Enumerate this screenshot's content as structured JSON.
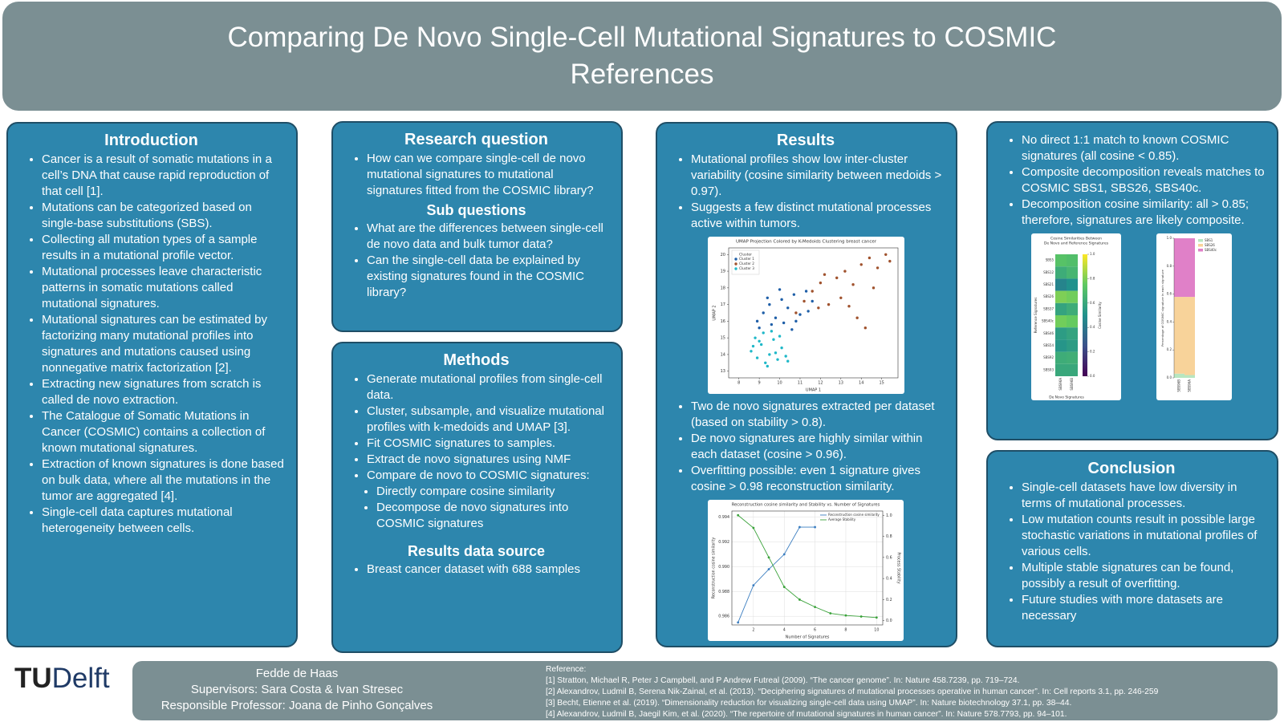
{
  "header": {
    "title": "Comparing De Novo Single-Cell Mutational Signatures to COSMIC References"
  },
  "introduction": {
    "heading": "Introduction",
    "bullets": [
      "Cancer is a result of somatic mutations in a cell’s DNA that cause rapid reproduction of that cell [1].",
      "Mutations can be categorized based on single-base substitutions (SBS).",
      "Collecting all mutation types of a sample results in a mutational profile vector.",
      "Mutational processes leave characteristic patterns in somatic mutations called mutational signatures.",
      "Mutational signatures can be estimated by factorizing many mutational profiles into signatures and mutations caused using nonnegative matrix factorization [2].",
      "Extracting new signatures from scratch is called de novo extraction.",
      "The Catalogue of Somatic Mutations in Cancer (COSMIC) contains a collection of known mutational signatures.",
      "Extraction of known signatures is done based on bulk data, where all the mutations in the tumor are aggregated [4].",
      "Single-cell data captures mutational heterogeneity between cells."
    ]
  },
  "research": {
    "heading": "Research question",
    "bullets": [
      "How can we compare single-cell de novo mutational signatures to mutational signatures fitted from the COSMIC library?"
    ],
    "sub_heading": "Sub questions",
    "sub_bullets": [
      "What are the differences between single-cell de novo data and bulk tumor data?",
      "Can the single-cell data be explained by existing signatures found in the COSMIC library?"
    ]
  },
  "methods": {
    "heading": "Methods",
    "bullets": [
      "Generate mutational profiles from single-cell data.",
      "Cluster, subsample, and visualize mutational profiles with k-medoids and UMAP [3].",
      "Fit COSMIC signatures to samples.",
      "Extract de novo signatures using NMF",
      "Compare de novo to COSMIC signatures:"
    ],
    "sub_bullets": [
      "Directly compare cosine similarity",
      "Decompose de novo signatures into COSMIC signatures"
    ],
    "source_heading": "Results data source",
    "source_bullets": [
      "Breast cancer dataset with 688 samples"
    ]
  },
  "results": {
    "heading": "Results",
    "bullets_top": [
      "Mutational profiles show low inter-cluster variability (cosine similarity between medoids > 0.97).",
      "Suggests a few distinct mutational processes active within tumors."
    ],
    "bullets_bottom": [
      "Two de novo signatures extracted per dataset (based on stability > 0.8).",
      "De novo signatures are highly similar within each dataset (cosine > 0.96).",
      "Overfitting possible: even 1 signature gives cosine > 0.98 reconstruction similarity."
    ]
  },
  "results2": {
    "bullets": [
      "No direct 1:1 match to known COSMIC signatures (all cosine < 0.85).",
      "Composite decomposition reveals matches to COSMIC SBS1, SBS26, SBS40c.",
      "Decomposition cosine similarity: all > 0.85; therefore, signatures are likely composite."
    ]
  },
  "conclusion": {
    "heading": "Conclusion",
    "bullets": [
      "Single-cell datasets have low diversity in terms of mutational processes.",
      "Low mutation counts result in possible large stochastic variations in mutational profiles of various cells.",
      "Multiple stable signatures can be found, possibly a result of overfitting.",
      "Future studies with more datasets are necessary"
    ]
  },
  "figures": {
    "umap": {
      "type": "scatter",
      "title": "UMAP Projection Colored by K-Medoids Clustering breast cancer",
      "xlabel": "UMAP 1",
      "ylabel": "UMAP 2",
      "legend_title": "Cluster",
      "legend": "upper left",
      "xlim": [
        7.5,
        15.8
      ],
      "ylim": [
        12.6,
        20.4
      ],
      "xticks": [
        8,
        9,
        10,
        11,
        12,
        13,
        14,
        15
      ],
      "yticks": [
        13,
        14,
        15,
        16,
        17,
        18,
        19,
        20
      ],
      "series": [
        {
          "name": "Cluster 1",
          "color": "#1f5fa8",
          "x": [
            8.9,
            9.2,
            9.5,
            9.8,
            10.1,
            10.4,
            10.7,
            11.0,
            11.3,
            11.6,
            9.0,
            9.6,
            10.2,
            10.8,
            11.4,
            9.4,
            10.0,
            10.6
          ],
          "y": [
            16.0,
            16.5,
            17.0,
            16.2,
            17.3,
            16.8,
            17.6,
            16.4,
            17.8,
            17.2,
            15.6,
            15.8,
            15.9,
            16.0,
            16.6,
            17.4,
            17.9,
            15.5
          ]
        },
        {
          "name": "Cluster 2",
          "color": "#a0522d",
          "x": [
            10.8,
            11.2,
            11.6,
            12.0,
            12.4,
            12.8,
            13.2,
            13.6,
            14.0,
            14.4,
            14.8,
            15.2,
            13.0,
            13.8,
            14.6,
            15.4,
            12.2,
            14.2,
            13.4,
            11.9
          ],
          "y": [
            16.5,
            17.2,
            17.8,
            18.3,
            17.0,
            18.6,
            19.0,
            18.2,
            19.4,
            19.8,
            19.2,
            20.0,
            17.4,
            16.2,
            18.0,
            19.6,
            18.8,
            15.6,
            16.9,
            16.8
          ]
        },
        {
          "name": "Cluster 3",
          "color": "#1fb8c8",
          "x": [
            8.6,
            8.9,
            9.1,
            9.3,
            9.5,
            9.7,
            9.9,
            10.1,
            10.3,
            8.8,
            9.2,
            9.6,
            10.0,
            9.4,
            8.7,
            9.8,
            10.4,
            9.0
          ],
          "y": [
            14.2,
            13.8,
            14.6,
            13.5,
            14.0,
            14.9,
            13.7,
            14.4,
            13.9,
            15.0,
            15.3,
            15.4,
            15.1,
            13.3,
            14.5,
            14.1,
            13.6,
            14.8
          ]
        }
      ]
    },
    "recon": {
      "type": "line",
      "title": "Reconstruction cosine similarity and Stability vs. Number of Signatures",
      "xlabel": "Number of Signatures",
      "ylabel": "Reconstruction cosine similarity",
      "y2label": "Process Stability",
      "legend": "upper right",
      "grid": true,
      "x": [
        1,
        2,
        3,
        4,
        5,
        6,
        7,
        8,
        9,
        10
      ],
      "xlim": [
        0.6,
        10.4
      ],
      "xticks": [
        2,
        4,
        6,
        8,
        10
      ],
      "ylim": [
        0.9853,
        0.9945
      ],
      "yticks": [
        0.986,
        0.988,
        {
          "value": 0.99,
          "label": "0.990"
        },
        0.992,
        0.994
      ],
      "y2lim": [
        -0.04,
        1.04
      ],
      "y2ticks": [
        {
          "value": 0,
          "label": "0.0"
        },
        0.2,
        0.4,
        0.6,
        0.8,
        {
          "value": 1,
          "label": "1.0"
        }
      ],
      "series": [
        {
          "name": "Reconstruction cosine similarity",
          "color": "#3a7dc0",
          "values": [
            0.9855,
            0.9885,
            0.9898,
            0.991,
            0.9932,
            0.9932,
            null,
            null,
            null,
            null
          ]
        },
        {
          "name": "Average Stability",
          "color": "#3aa23a",
          "axis": "y2",
          "values": [
            1.0,
            0.88,
            0.6,
            0.32,
            0.2,
            0.13,
            0.07,
            0.05,
            0.04,
            0.03
          ]
        }
      ]
    },
    "heatmap": {
      "type": "heatmap",
      "title": [
        "Cosine Similarities Between",
        "De Novo and Reference Signatures"
      ],
      "xlabel": "De Novo Signatures",
      "ylabel": "Reference Signatures",
      "colorbar_label": "Cosine Similarity",
      "rows": [
        "SBS5",
        "SBS12",
        "SBS21",
        "SBS26",
        "SBS37",
        "SBS40c",
        "SBS46",
        "SBS54",
        "SBS92",
        "SBS93"
      ],
      "columns": [
        "SBS96A",
        "SBS96B"
      ],
      "values": [
        [
          0.72,
          0.7
        ],
        [
          0.62,
          0.66
        ],
        [
          0.45,
          0.5
        ],
        [
          0.8,
          0.78
        ],
        [
          0.58,
          0.62
        ],
        [
          0.78,
          0.76
        ],
        [
          0.55,
          0.58
        ],
        [
          0.52,
          0.55
        ],
        [
          0.62,
          0.63
        ],
        [
          0.6,
          0.6
        ]
      ],
      "clim": [
        0,
        1
      ],
      "cticks": [
        {
          "value": 0,
          "label": "0.0"
        },
        0.2,
        0.4,
        0.6,
        0.8,
        {
          "value": 1,
          "label": "1.0"
        }
      ]
    },
    "stacked": {
      "type": "stacked_bar",
      "ylabel": "Percentage of COSMIC signature in each signature",
      "legend": "upper right",
      "categories": [
        "SBS96B",
        "SBS96A"
      ],
      "ylim": [
        0,
        1
      ],
      "yticks": [
        {
          "value": 0,
          "label": "0.0"
        },
        0.2,
        0.4,
        0.6,
        0.8,
        {
          "value": 1,
          "label": "1.0"
        }
      ],
      "series": [
        {
          "name": "SBS1",
          "color": "#b8e6c0",
          "values": [
            0.03,
            0.02
          ]
        },
        {
          "name": "SBS26",
          "color": "#f8d39a",
          "values": [
            0.55,
            0.56
          ]
        },
        {
          "name": "SBS40c",
          "color": "#e080c8",
          "values": [
            0.42,
            0.42
          ]
        }
      ]
    }
  },
  "footer": {
    "logo_tu": "TU",
    "logo_delft": "Delft",
    "author": "Fedde de Haas",
    "supervisors": "Supervisors:  Sara Costa & Ivan Stresec",
    "professor": "Responsible Professor: Joana de Pinho Gonçalves",
    "reference_heading": "Reference:",
    "references": [
      "[1] Stratton, Michael R, Peter J Campbell, and P Andrew Futreal (2009). “The cancer genome”. In: Nature 458.7239, pp. 719–724.",
      "[2] Alexandrov, Ludmil B, Serena Nik-Zainal, et al. (2013). “Deciphering signatures of mutational processes operative in human cancer”. In: Cell reports 3.1, pp. 246-259",
      "[3] Becht, Etienne et al. (2019). “Dimensionality reduction for visualizing single-cell data using UMAP”. In: Nature biotechnology 37.1, pp. 38–44.",
      "[4] Alexandrov, Ludmil B, Jaegil Kim, et al. (2020). “The repertoire of mutational signatures in human cancer”. In: Nature 578.7793, pp. 94–101."
    ]
  }
}
